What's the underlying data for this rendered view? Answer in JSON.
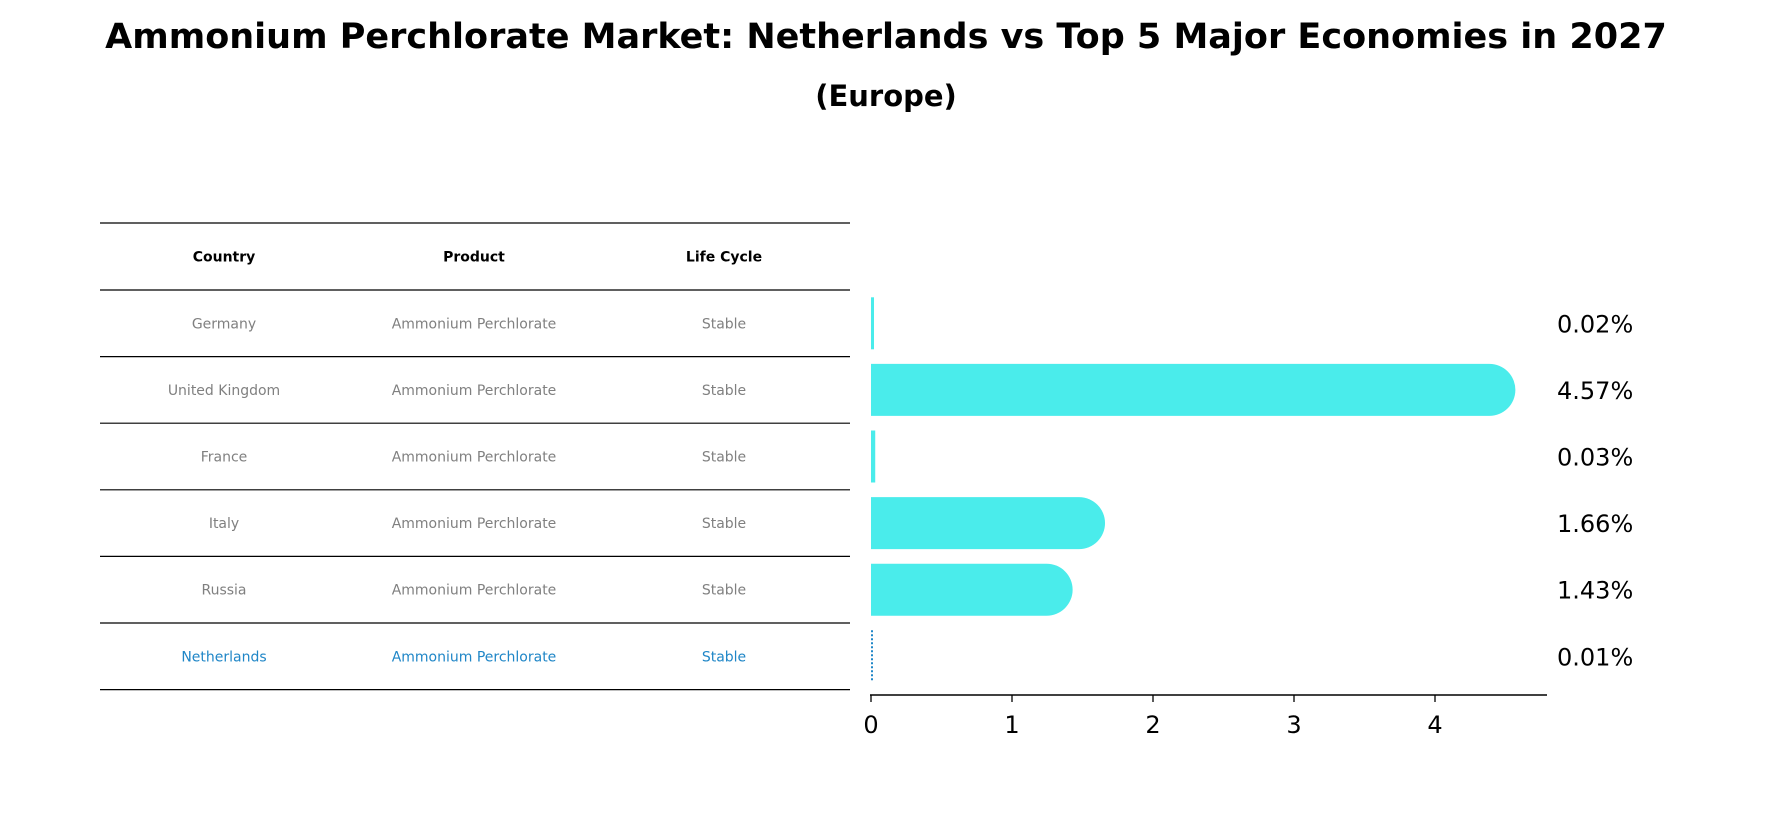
{
  "title": "Ammonium Perchlorate Market: Netherlands vs Top 5 Major Economies in 2027",
  "subtitle": "(Europe)",
  "colors": {
    "bar": "#4aeceb",
    "highlight": "#1f86c7",
    "muted_text": "#808080",
    "line": "#000000"
  },
  "table": {
    "headers": [
      "Country",
      "Product",
      "Life Cycle"
    ],
    "rows": [
      {
        "country": "Germany",
        "product": "Ammonium Perchlorate",
        "life_cycle": "Stable",
        "highlight": false
      },
      {
        "country": "United Kingdom",
        "product": "Ammonium Perchlorate",
        "life_cycle": "Stable",
        "highlight": false
      },
      {
        "country": "France",
        "product": "Ammonium Perchlorate",
        "life_cycle": "Stable",
        "highlight": false
      },
      {
        "country": "Italy",
        "product": "Ammonium Perchlorate",
        "life_cycle": "Stable",
        "highlight": false
      },
      {
        "country": "Russia",
        "product": "Ammonium Perchlorate",
        "life_cycle": "Stable",
        "highlight": false
      },
      {
        "country": "Netherlands",
        "product": "Ammonium Perchlorate",
        "life_cycle": "Stable",
        "highlight": true
      }
    ]
  },
  "chart_data": {
    "type": "bar",
    "orientation": "horizontal",
    "title": "Ammonium Perchlorate Market: Netherlands vs Top 5 Major Economies in 2027",
    "subtitle": "(Europe)",
    "categories": [
      "Germany",
      "United Kingdom",
      "France",
      "Italy",
      "Russia",
      "Netherlands"
    ],
    "values": [
      0.02,
      4.57,
      0.03,
      1.66,
      1.43,
      0.01
    ],
    "value_labels": [
      "0.02%",
      "4.57%",
      "0.03%",
      "1.66%",
      "1.43%",
      "0.01%"
    ],
    "xticks": [
      0,
      1,
      2,
      3,
      4
    ],
    "xlim": [
      0,
      4.8
    ],
    "xlabel": "",
    "ylabel": "",
    "grid": false,
    "highlight_category": "Netherlands"
  }
}
